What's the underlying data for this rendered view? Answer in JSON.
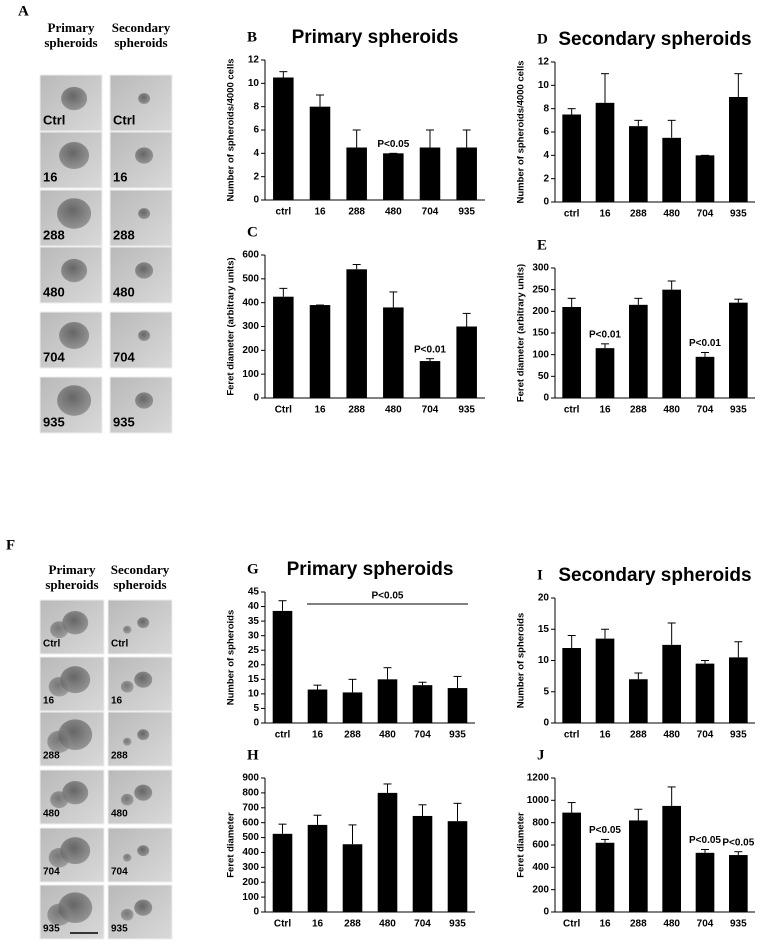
{
  "micrographs": [
    {
      "label": "A",
      "columns": [
        "Primary spheroids",
        "Secondary spheroids"
      ],
      "rows": [
        "Ctrl",
        "16",
        "288",
        "480",
        "704",
        "935"
      ]
    },
    {
      "label": "F",
      "columns": [
        "Primary spheroids",
        "Secondary spheroids"
      ],
      "rows": [
        "Ctrl",
        "16",
        "288",
        "480",
        "704",
        "935"
      ]
    }
  ],
  "chart_data": [
    {
      "type": "bar",
      "label": "B",
      "title": "Primary spheroids",
      "y_label": "Number of spheroids/4000 cells",
      "categories": [
        "ctrl",
        "16",
        "288",
        "480",
        "704",
        "935"
      ],
      "values": [
        10.5,
        8,
        4.5,
        4,
        4.5,
        4.5
      ],
      "errors": [
        0.5,
        1,
        1.5,
        0,
        1.5,
        1.5
      ],
      "ylim": [
        0,
        12
      ],
      "yticks": [
        0,
        2,
        4,
        6,
        8,
        10,
        12
      ],
      "color": "#000000",
      "annotations": [
        {
          "text": "P<0.05",
          "category": "480"
        }
      ]
    },
    {
      "type": "bar",
      "label": "C",
      "y_label": "Feret diameter (arbitrary units)",
      "categories": [
        "Ctrl",
        "16",
        "288",
        "480",
        "704",
        "935"
      ],
      "values": [
        425,
        390,
        540,
        380,
        155,
        300
      ],
      "errors": [
        35,
        0,
        20,
        65,
        10,
        55
      ],
      "ylim": [
        0,
        600
      ],
      "yticks": [
        0,
        100,
        200,
        300,
        400,
        500,
        600
      ],
      "color": "#000000",
      "annotations": [
        {
          "text": "P<0.01",
          "category": "704"
        }
      ]
    },
    {
      "type": "bar",
      "label": "D",
      "title": "Secondary spheroids",
      "y_label": "Number of spheroids/4000 cells",
      "categories": [
        "ctrl",
        "16",
        "288",
        "480",
        "704",
        "935"
      ],
      "values": [
        7.5,
        8.5,
        6.5,
        5.5,
        4,
        9
      ],
      "errors": [
        0.5,
        2.5,
        0.5,
        1.5,
        0,
        2
      ],
      "ylim": [
        0,
        12
      ],
      "yticks": [
        0,
        2,
        4,
        6,
        8,
        10,
        12
      ],
      "color": "#000000"
    },
    {
      "type": "bar",
      "label": "E",
      "y_label": "Feret diameter (arbitrary units)",
      "categories": [
        "ctrl",
        "16",
        "288",
        "480",
        "704",
        "935"
      ],
      "values": [
        210,
        115,
        215,
        250,
        95,
        220
      ],
      "errors": [
        20,
        10,
        15,
        20,
        10,
        8
      ],
      "ylim": [
        0,
        300
      ],
      "yticks": [
        0,
        50,
        100,
        150,
        200,
        250,
        300
      ],
      "color": "#000000",
      "annotations": [
        {
          "text": "P<0.01",
          "category": "16"
        },
        {
          "text": "P<0.01",
          "category": "704"
        }
      ]
    },
    {
      "type": "bar",
      "label": "G",
      "title": "Primary spheroids",
      "y_label": "Number of spheroids",
      "categories": [
        "ctrl",
        "16",
        "288",
        "480",
        "704",
        "935"
      ],
      "values": [
        38.5,
        11.5,
        10.5,
        15,
        13,
        12
      ],
      "errors": [
        3.5,
        1.5,
        4.5,
        4,
        1,
        4
      ],
      "ylim": [
        0,
        45
      ],
      "yticks": [
        0,
        5,
        10,
        15,
        20,
        25,
        30,
        35,
        40,
        45
      ],
      "color": "#000000",
      "annotations": [
        {
          "text": "P<0.05",
          "from": "16",
          "to": "935"
        }
      ]
    },
    {
      "type": "bar",
      "label": "H",
      "y_label": "Feret diameter",
      "categories": [
        "Ctrl",
        "16",
        "288",
        "480",
        "704",
        "935"
      ],
      "values": [
        525,
        585,
        455,
        800,
        645,
        610
      ],
      "errors": [
        65,
        65,
        130,
        60,
        75,
        120
      ],
      "ylim": [
        0,
        900
      ],
      "yticks": [
        0,
        100,
        200,
        300,
        400,
        500,
        600,
        700,
        800,
        900
      ],
      "color": "#000000"
    },
    {
      "type": "bar",
      "label": "I",
      "title": "Secondary spheroids",
      "y_label": "Number of spheroids",
      "categories": [
        "ctrl",
        "16",
        "288",
        "480",
        "704",
        "935"
      ],
      "values": [
        12,
        13.5,
        7,
        12.5,
        9.5,
        10.5
      ],
      "errors": [
        2,
        1.5,
        1,
        3.5,
        0.5,
        2.5
      ],
      "ylim": [
        0,
        20
      ],
      "yticks": [
        0,
        5,
        10,
        15,
        20
      ],
      "color": "#000000"
    },
    {
      "type": "bar",
      "label": "J",
      "y_label": "Feret diameter",
      "categories": [
        "Ctrl",
        "16",
        "288",
        "480",
        "704",
        "935"
      ],
      "values": [
        890,
        620,
        820,
        950,
        530,
        510
      ],
      "errors": [
        90,
        30,
        100,
        170,
        30,
        30
      ],
      "ylim": [
        0,
        1200
      ],
      "yticks": [
        0,
        200,
        400,
        600,
        800,
        1000,
        1200
      ],
      "color": "#000000",
      "annotations": [
        {
          "text": "P<0.05",
          "category": "16"
        },
        {
          "text": "P<0.05",
          "category": "704"
        },
        {
          "text": "P<0.05",
          "category": "935"
        }
      ]
    }
  ]
}
